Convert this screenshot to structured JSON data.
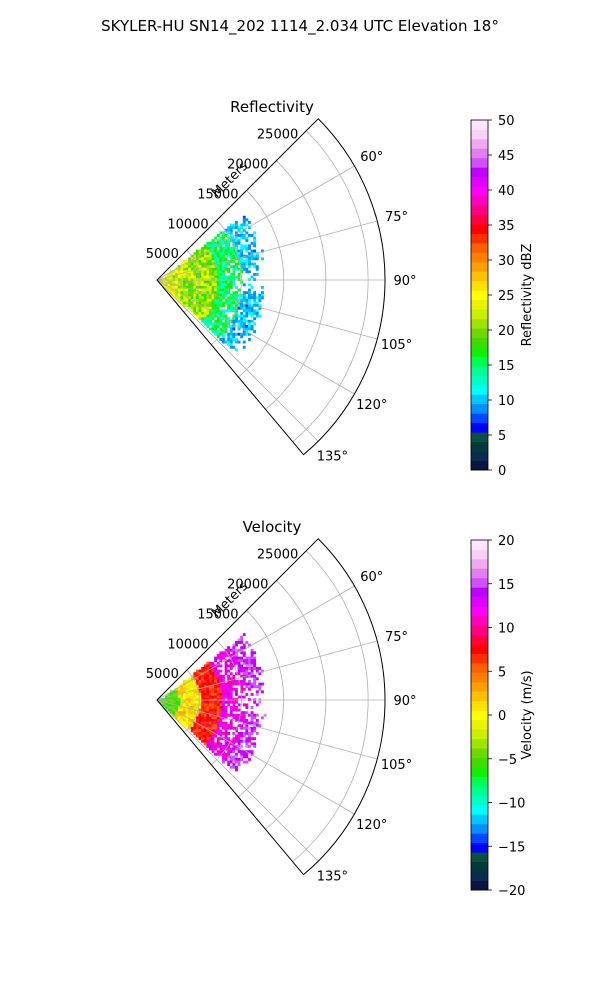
{
  "figure": {
    "suptitle": "SKYLER-HU  SN14_202  1114_2.034 UTC Elevation 18°"
  },
  "chart_data": [
    {
      "type": "heatmap",
      "subtype": "polar-sector (radar PPI)",
      "title": "Reflectivity",
      "range_axis_label": "Meters",
      "range_ticks": [
        5000,
        10000,
        15000,
        20000,
        25000
      ],
      "range_tick_labels": [
        "5000",
        "10000",
        "15000",
        "20000",
        "25000"
      ],
      "range_limit": [
        0,
        27000
      ],
      "azimuth_limit_deg": [
        45,
        140
      ],
      "azimuth_ticks_deg": [
        60,
        75,
        90,
        105,
        120,
        135
      ],
      "azimuth_tick_labels": [
        "60°",
        "75°",
        "90°",
        "105°",
        "120°",
        "135°"
      ],
      "grid": true,
      "colorbar": {
        "label": "Reflectivity dBZ",
        "min": 0,
        "max": 50,
        "ticks": [
          0,
          5,
          10,
          15,
          20,
          25,
          30,
          35,
          40,
          45,
          50
        ],
        "tick_labels": [
          "0",
          "5",
          "10",
          "15",
          "20",
          "25",
          "30",
          "35",
          "40",
          "45",
          "50"
        ],
        "colors": [
          "#0a1440",
          "#0a2a4e",
          "#003a3a",
          "#0b5040",
          "#0000ff",
          "#0048ff",
          "#0090ff",
          "#00c8ff",
          "#00ffff",
          "#00ffc0",
          "#00ff90",
          "#00ff4c",
          "#10f000",
          "#40dc00",
          "#70d800",
          "#a0e400",
          "#c8f000",
          "#e8f400",
          "#ffff00",
          "#ffe000",
          "#ffc000",
          "#ffa000",
          "#ff8000",
          "#ff6000",
          "#ff3000",
          "#ff0000",
          "#ff0040",
          "#ff0080",
          "#ff00c0",
          "#ff00ff",
          "#e000ff",
          "#c000ff",
          "#d050ff",
          "#e080f0",
          "#f0a8f0",
          "#f8d0f8",
          "#ffe6ff"
        ]
      },
      "observed_data": {
        "range_coverage_m": [
          0,
          13000
        ],
        "azimuth_coverage_deg": [
          52,
          133
        ],
        "value_bands": [
          {
            "range_m": [
              0,
              3000
            ],
            "dbz": [
              20,
              27
            ]
          },
          {
            "range_m": [
              3000,
              7000
            ],
            "dbz": [
              17,
              25
            ]
          },
          {
            "range_m": [
              7000,
              10000
            ],
            "dbz": [
              12,
              18
            ]
          },
          {
            "range_m": [
              10000,
              13000
            ],
            "dbz": [
              8,
              12
            ]
          }
        ]
      }
    },
    {
      "type": "heatmap",
      "subtype": "polar-sector (radar PPI)",
      "title": "Velocity",
      "range_axis_label": "Meters",
      "range_ticks": [
        5000,
        10000,
        15000,
        20000,
        25000
      ],
      "range_tick_labels": [
        "5000",
        "10000",
        "15000",
        "20000",
        "25000"
      ],
      "range_limit": [
        0,
        27000
      ],
      "azimuth_limit_deg": [
        45,
        140
      ],
      "azimuth_ticks_deg": [
        60,
        75,
        90,
        105,
        120,
        135
      ],
      "azimuth_tick_labels": [
        "60°",
        "75°",
        "90°",
        "105°",
        "120°",
        "135°"
      ],
      "grid": true,
      "colorbar": {
        "label": "Velocity (m/s)",
        "min": -20,
        "max": 20,
        "ticks": [
          -20,
          -15,
          -10,
          -5,
          0,
          5,
          10,
          15,
          20
        ],
        "tick_labels": [
          "−20",
          "−15",
          "−10",
          "−5",
          "0",
          "5",
          "10",
          "15",
          "20"
        ],
        "colors": [
          "#0a1440",
          "#0a2a4e",
          "#003a3a",
          "#0b5040",
          "#0000ff",
          "#0048ff",
          "#0090ff",
          "#00c8ff",
          "#00ffff",
          "#00ffc0",
          "#00ff90",
          "#00ff4c",
          "#10f000",
          "#40dc00",
          "#70d800",
          "#a0e400",
          "#c8f000",
          "#e8f400",
          "#ffff00",
          "#ffe000",
          "#ffc000",
          "#ffa000",
          "#ff8000",
          "#ff6000",
          "#ff3000",
          "#ff0000",
          "#ff0040",
          "#ff0080",
          "#ff00c0",
          "#ff00ff",
          "#e000ff",
          "#c000ff",
          "#d050ff",
          "#e080f0",
          "#f0a8f0",
          "#f8d0f8",
          "#ffe6ff"
        ]
      },
      "observed_data": {
        "range_coverage_m": [
          0,
          13000
        ],
        "azimuth_coverage_deg": [
          52,
          133
        ],
        "value_bands": [
          {
            "range_m": [
              0,
              2500
            ],
            "ms": [
              -7,
              -4
            ]
          },
          {
            "range_m": [
              2500,
              5000
            ],
            "ms": [
              -2,
              3
            ]
          },
          {
            "range_m": [
              5000,
              7500
            ],
            "ms": [
              5,
              9
            ]
          },
          {
            "range_m": [
              7500,
              10500
            ],
            "ms": [
              10,
              14
            ]
          },
          {
            "range_m": [
              10500,
              13000
            ],
            "ms": [
              13,
              16
            ]
          }
        ]
      }
    }
  ]
}
